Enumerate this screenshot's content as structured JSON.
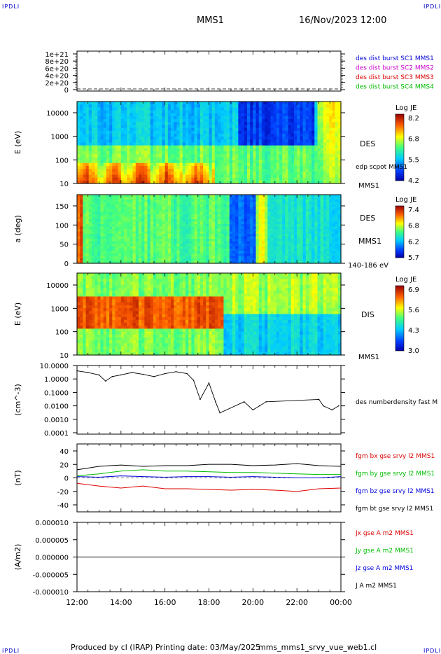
{
  "header": {
    "corner_label": "IPDLI",
    "mission": "MMS1",
    "datetime": "16/Nov/2023 12:00"
  },
  "footer": {
    "produced": "Produced by cl (IRAP)",
    "printing": "Printing date: 03/May/2025",
    "file": "mms_mms1_srvy_vue_web1.cl"
  },
  "colors": {
    "red": "#dd0000",
    "green": "#00bb00",
    "blue": "#0000dd",
    "magenta": "#cc00cc",
    "black": "#000000"
  },
  "chart_data": [
    {
      "type": "line",
      "panel": "burst",
      "ylabel": "",
      "yticks": [
        "1e+21",
        "8e+20",
        "6e+20",
        "4e+20",
        "2e+20",
        "0"
      ],
      "ylim": [
        0,
        1.1e+21
      ],
      "legend": [
        {
          "name": "des dist burst SC1 MMS1",
          "color": "#0000dd"
        },
        {
          "name": "des dist burst SC2 MMS2",
          "color": "#cc00cc"
        },
        {
          "name": "des dist burst SC3 MMS3",
          "color": "#dd0000"
        },
        {
          "name": "des dist burst SC4 MMS4",
          "color": "#00bb00"
        }
      ]
    },
    {
      "type": "heatmap",
      "panel": "des-energy",
      "ylabel": "E (eV)",
      "yticks": [
        "10000",
        "1000",
        "100",
        "10"
      ],
      "right_labels": [
        "DES",
        "edp scpot MMS1",
        "MMS1"
      ],
      "colorbar": {
        "title": "Log JE",
        "ticks": [
          "8.2",
          "6.8",
          "5.5",
          "4.2"
        ],
        "range": [
          4.2,
          8.2
        ]
      }
    },
    {
      "type": "heatmap",
      "panel": "des-pitch",
      "ylabel": "a (deg)",
      "yticks": [
        "150",
        "100",
        "50",
        "0"
      ],
      "ylim": [
        0,
        180
      ],
      "right_labels": [
        "DES",
        "MMS1",
        "140-186 eV"
      ],
      "colorbar": {
        "title": "Log JE",
        "ticks": [
          "7.4",
          "6.8",
          "6.2",
          "5.7"
        ],
        "range": [
          5.7,
          7.4
        ]
      }
    },
    {
      "type": "heatmap",
      "panel": "dis-energy",
      "ylabel": "E (eV)",
      "yticks": [
        "10000",
        "1000",
        "100",
        "10"
      ],
      "right_labels": [
        "DIS",
        "MMS1"
      ],
      "colorbar": {
        "title": "Log JE",
        "ticks": [
          "6.9",
          "5.6",
          "4.3",
          "3.0"
        ],
        "range": [
          3.0,
          6.9
        ]
      }
    },
    {
      "type": "line",
      "panel": "density",
      "ylabel": "(cm^-3)",
      "log": true,
      "yticks": [
        "10.0000",
        "1.0000",
        "0.1000",
        "0.0100",
        "0.0010",
        "0.0001"
      ],
      "ylim": [
        0.0001,
        10
      ],
      "legend": [
        {
          "name": "des numberdensity fast M",
          "color": "#000000"
        }
      ],
      "series": [
        {
          "name": "des numberdensity fast M",
          "x": [
            12.0,
            12.5,
            13.0,
            13.3,
            13.6,
            14.0,
            14.5,
            15.0,
            15.5,
            16.0,
            16.5,
            17.0,
            17.3,
            17.6,
            18.0,
            18.3,
            18.5,
            19.6,
            20.0,
            20.3,
            20.6,
            23.0,
            23.2,
            23.6,
            23.9
          ],
          "y": [
            4,
            3,
            2,
            0.7,
            1.5,
            2,
            3,
            2.2,
            1.5,
            2.5,
            3.5,
            2.5,
            0.8,
            0.03,
            0.5,
            0.02,
            0.003,
            0.02,
            0.005,
            0.01,
            0.02,
            0.03,
            0.01,
            0.005,
            0.01
          ]
        }
      ]
    },
    {
      "type": "line",
      "panel": "magnetic-field",
      "ylabel": "(nT)",
      "yticks": [
        "40",
        "20",
        "0",
        "-20",
        "-40"
      ],
      "ylim": [
        -50,
        50
      ],
      "legend": [
        {
          "name": "fgm bx gse srvy l2 MMS1",
          "color": "#dd0000"
        },
        {
          "name": "fgm by gse srvy l2 MMS1",
          "color": "#00bb00"
        },
        {
          "name": "fgm bz gse srvy l2 MMS1",
          "color": "#0000dd"
        },
        {
          "name": "fgm bt gse srvy l2 MMS1",
          "color": "#000000"
        }
      ],
      "x": [
        12,
        13,
        14,
        15,
        16,
        17,
        18,
        19,
        20,
        21,
        22,
        23,
        24
      ],
      "series": [
        {
          "name": "fgm bx gse srvy l2 MMS1",
          "values": [
            -8,
            -12,
            -15,
            -12,
            -16,
            -16,
            -17,
            -18,
            -17,
            -18,
            -20,
            -16,
            -15
          ]
        },
        {
          "name": "fgm by gse srvy l2 MMS1",
          "values": [
            3,
            6,
            10,
            12,
            10,
            10,
            9,
            8,
            8,
            7,
            6,
            5,
            5
          ]
        },
        {
          "name": "fgm bz gse srvy l2 MMS1",
          "values": [
            2,
            1,
            3,
            2,
            1,
            2,
            2,
            1,
            2,
            1,
            0,
            0,
            2
          ]
        },
        {
          "name": "fgm bt gse srvy l2 MMS1",
          "values": [
            12,
            17,
            19,
            17,
            18,
            18,
            20,
            20,
            18,
            19,
            21,
            18,
            17
          ]
        }
      ]
    },
    {
      "type": "line",
      "panel": "current",
      "ylabel": "(A/m2)",
      "yticks": [
        "0.000010",
        "0.000005",
        "0.000000",
        "-0.000005",
        "-0.000010"
      ],
      "ylim": [
        -1e-05,
        1e-05
      ],
      "xticks": [
        "12:00",
        "14:00",
        "16:00",
        "18:00",
        "20:00",
        "22:00",
        "00:00"
      ],
      "legend": [
        {
          "name": "Jx gse A m2 MMS1",
          "color": "#dd0000"
        },
        {
          "name": "Jy gse A m2 MMS1",
          "color": "#00bb00"
        },
        {
          "name": "Jz gse A m2 MMS1",
          "color": "#0000dd"
        },
        {
          "name": "J A m2 MMS1",
          "color": "#000000"
        }
      ]
    }
  ]
}
